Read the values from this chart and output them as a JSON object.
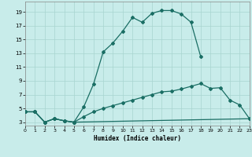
{
  "bg_color": "#c8ecea",
  "grid_color": "#a8d4d0",
  "line_color": "#1a6e64",
  "xlabel": "Humidex (Indice chaleur)",
  "xlim": [
    0,
    23
  ],
  "ylim": [
    2.5,
    20.5
  ],
  "xticks": [
    0,
    1,
    2,
    3,
    4,
    5,
    6,
    7,
    8,
    9,
    10,
    11,
    12,
    13,
    14,
    15,
    16,
    17,
    18,
    19,
    20,
    21,
    22,
    23
  ],
  "yticks": [
    3,
    5,
    7,
    9,
    11,
    13,
    15,
    17,
    19
  ],
  "line1_x": [
    0,
    1,
    2,
    3,
    4,
    5,
    6,
    7,
    8,
    9,
    10,
    11,
    12,
    13,
    14,
    15,
    16,
    17,
    18
  ],
  "line1_y": [
    4.5,
    4.5,
    3.0,
    3.5,
    3.2,
    3.0,
    5.2,
    8.5,
    13.2,
    14.5,
    16.2,
    18.2,
    17.5,
    18.8,
    19.2,
    19.2,
    18.7,
    17.5,
    12.5
  ],
  "line2_x": [
    0,
    1,
    2,
    3,
    4,
    5,
    6,
    7,
    8,
    9,
    10,
    11,
    12,
    13,
    14,
    15,
    16,
    17,
    18,
    19,
    20,
    21,
    22,
    23
  ],
  "line2_y": [
    4.5,
    4.5,
    3.0,
    3.5,
    3.2,
    3.0,
    3.8,
    4.5,
    5.0,
    5.4,
    5.8,
    6.2,
    6.6,
    7.0,
    7.4,
    7.5,
    7.8,
    8.2,
    8.6,
    7.9,
    8.0,
    6.2,
    5.5,
    3.5
  ],
  "line3_x": [
    0,
    1,
    2,
    3,
    4,
    5,
    23
  ],
  "line3_y": [
    4.5,
    4.5,
    3.0,
    3.5,
    3.2,
    3.0,
    3.5
  ]
}
